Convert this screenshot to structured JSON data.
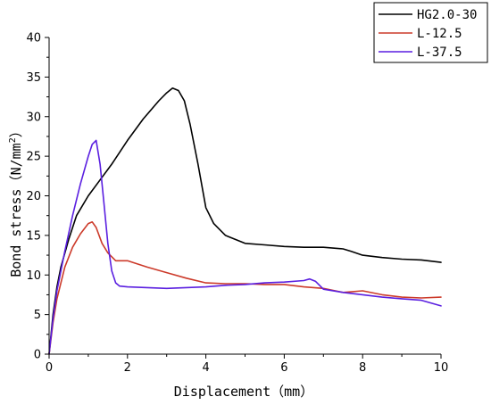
{
  "chart_data": {
    "type": "line",
    "xlabel": "Displacement（mm）",
    "ylabel_text": "Bond stress（N/mm",
    "ylabel_sup": "2",
    "ylabel_close": "）",
    "xlim": [
      0,
      10
    ],
    "ylim": [
      0,
      40
    ],
    "xticks": [
      0,
      2,
      4,
      6,
      8,
      10
    ],
    "yticks": [
      0,
      5,
      10,
      15,
      20,
      25,
      30,
      35,
      40
    ],
    "grid": false,
    "legend_position": "top-right",
    "series": [
      {
        "name": "HG2.0-30",
        "color": "#000000",
        "x": [
          0,
          0.1,
          0.2,
          0.3,
          0.5,
          0.7,
          1.0,
          1.3,
          1.6,
          2.0,
          2.4,
          2.8,
          3.0,
          3.15,
          3.3,
          3.45,
          3.6,
          3.8,
          4.0,
          4.2,
          4.5,
          5.0,
          5.5,
          6.0,
          6.5,
          7.0,
          7.5,
          7.7,
          8.0,
          8.5,
          9.0,
          9.5,
          10.0
        ],
        "y": [
          0,
          5,
          8.5,
          11,
          14.5,
          17.5,
          20,
          22,
          24,
          27,
          29.7,
          32,
          33,
          33.6,
          33.3,
          32,
          29,
          24,
          18.5,
          16.5,
          15,
          14,
          13.8,
          13.6,
          13.5,
          13.5,
          13.3,
          13,
          12.5,
          12.2,
          12,
          11.9,
          11.6
        ]
      },
      {
        "name": "L-12.5",
        "color": "#cc3a2a",
        "x": [
          0,
          0.1,
          0.2,
          0.4,
          0.6,
          0.8,
          1.0,
          1.1,
          1.2,
          1.35,
          1.5,
          1.7,
          2.0,
          2.5,
          3.0,
          3.5,
          4.0,
          4.5,
          5.0,
          5.5,
          6.0,
          6.5,
          7.0,
          7.5,
          8.0,
          8.5,
          9.0,
          9.5,
          10.0
        ],
        "y": [
          0,
          4,
          7,
          11,
          13.5,
          15.2,
          16.5,
          16.7,
          16,
          14,
          12.8,
          11.8,
          11.8,
          11,
          10.3,
          9.6,
          9,
          8.9,
          8.9,
          8.8,
          8.8,
          8.5,
          8.3,
          7.8,
          8,
          7.5,
          7.2,
          7.1,
          7.2
        ]
      },
      {
        "name": "L-37.5",
        "color": "#5a1fe0",
        "x": [
          0,
          0.1,
          0.2,
          0.4,
          0.6,
          0.8,
          1.0,
          1.1,
          1.2,
          1.3,
          1.4,
          1.5,
          1.6,
          1.7,
          1.8,
          2.0,
          2.5,
          3.0,
          3.5,
          4.0,
          4.5,
          5.0,
          5.5,
          6.0,
          6.5,
          6.65,
          6.8,
          7.0,
          7.5,
          8.0,
          8.5,
          9.0,
          9.5,
          10.0
        ],
        "y": [
          0,
          4.5,
          8,
          13,
          17.5,
          21.5,
          25,
          26.5,
          27,
          24,
          19,
          14,
          10.5,
          9,
          8.6,
          8.5,
          8.4,
          8.3,
          8.4,
          8.5,
          8.7,
          8.8,
          9.0,
          9.1,
          9.3,
          9.5,
          9.2,
          8.2,
          7.8,
          7.5,
          7.2,
          7.0,
          6.8,
          6.1
        ]
      }
    ]
  }
}
